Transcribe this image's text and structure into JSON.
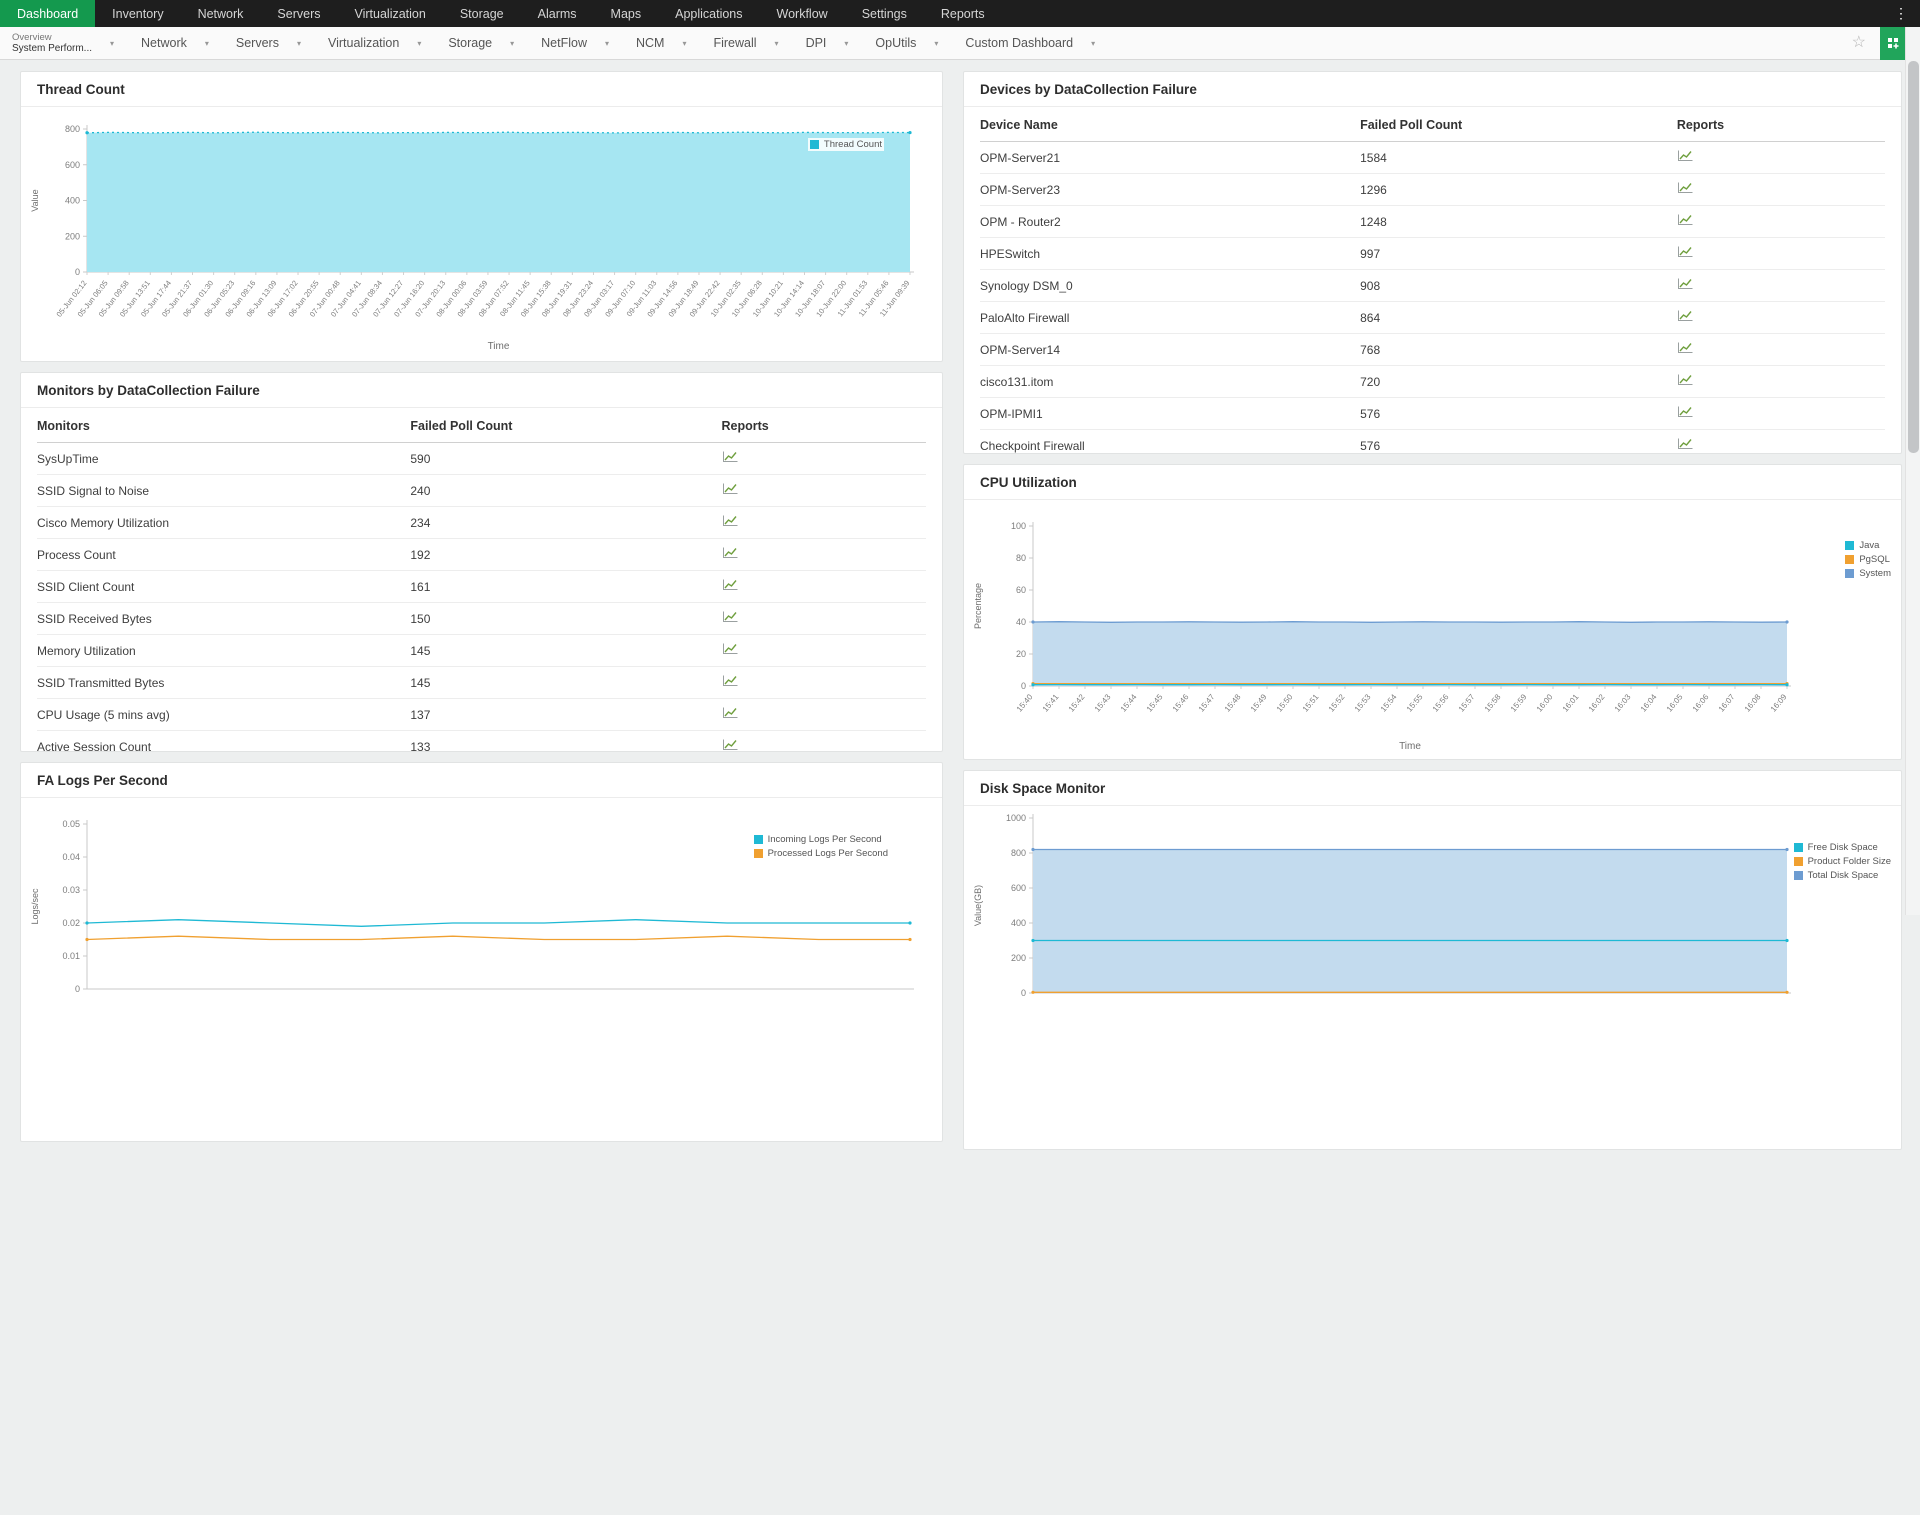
{
  "colors": {
    "nav_bg": "#1e1e1e",
    "nav_active_green": "#14994e",
    "accent_green_button": "#21a55b",
    "cyan": "#1fb9d4",
    "cyan_fill": "#a6e6f2",
    "orange": "#f0a030",
    "steel_blue": "#6d9cd1",
    "steel_blue_fill": "#c3dbee"
  },
  "icons": {
    "overflow": "kebab-menu-icon",
    "tab_dropdown": "chevron-down-icon",
    "favorite": "star-icon",
    "add_widget": "add-widget-icon",
    "report": "report-chart-icon"
  },
  "top_nav": {
    "items": [
      {
        "label": "Dashboard",
        "active": true
      },
      {
        "label": "Inventory",
        "active": false
      },
      {
        "label": "Network",
        "active": false
      },
      {
        "label": "Servers",
        "active": false
      },
      {
        "label": "Virtualization",
        "active": false
      },
      {
        "label": "Storage",
        "active": false
      },
      {
        "label": "Alarms",
        "active": false
      },
      {
        "label": "Maps",
        "active": false
      },
      {
        "label": "Applications",
        "active": false
      },
      {
        "label": "Workflow",
        "active": false
      },
      {
        "label": "Settings",
        "active": false
      },
      {
        "label": "Reports",
        "active": false
      }
    ]
  },
  "tab_bar": {
    "primary_tab": {
      "label": "Overview",
      "sublabel": "System Perform..."
    },
    "tabs": [
      "Network",
      "Servers",
      "Virtualization",
      "Storage",
      "NetFlow",
      "NCM",
      "Firewall",
      "DPI",
      "OpUtils",
      "Custom Dashboard"
    ]
  },
  "panels": {
    "thread": {
      "title": "Thread Count"
    },
    "monitors": {
      "title": "Monitors by DataCollection Failure",
      "columns": [
        "Monitors",
        "Failed Poll Count",
        "Reports"
      ],
      "rows": [
        [
          "SysUpTime",
          "590"
        ],
        [
          "SSID Signal to Noise",
          "240"
        ],
        [
          "Cisco Memory Utilization",
          "234"
        ],
        [
          "Process Count",
          "192"
        ],
        [
          "SSID Client Count",
          "161"
        ],
        [
          "SSID Received Bytes",
          "150"
        ],
        [
          "Memory Utilization",
          "145"
        ],
        [
          "SSID Transmitted Bytes",
          "145"
        ],
        [
          "CPU Usage (5 mins avg)",
          "137"
        ],
        [
          "Active Session Count",
          "133"
        ]
      ]
    },
    "fa_logs": {
      "title": "FA Logs Per Second"
    },
    "devices": {
      "title": "Devices by DataCollection Failure",
      "columns": [
        "Device Name",
        "Failed Poll Count",
        "Reports"
      ],
      "rows": [
        [
          "OPM-Server21",
          "1584"
        ],
        [
          "OPM-Server23",
          "1296"
        ],
        [
          "OPM - Router2",
          "1248"
        ],
        [
          "HPESwitch",
          "997"
        ],
        [
          "Synology DSM_0",
          "908"
        ],
        [
          "PaloAlto Firewall",
          "864"
        ],
        [
          "OPM-Server14",
          "768"
        ],
        [
          "cisco131.itom",
          "720"
        ],
        [
          "OPM-IPMI1",
          "576"
        ],
        [
          "Checkpoint Firewall",
          "576"
        ]
      ]
    },
    "cpu": {
      "title": "CPU Utilization"
    },
    "disk": {
      "title": "Disk Space Monitor"
    }
  },
  "chart_data": [
    {
      "id": "thread",
      "type": "area",
      "title": "Thread Count",
      "xlabel": "Time",
      "ylabel": "Value",
      "ylim": [
        0,
        800
      ],
      "yticks": [
        0,
        200,
        400,
        600,
        800
      ],
      "x": [
        "05-Jun 02:12",
        "05-Jun 06:05",
        "05-Jun 09:58",
        "05-Jun 13:51",
        "05-Jun 17:44",
        "05-Jun 21:37",
        "06-Jun 01:30",
        "06-Jun 05:23",
        "06-Jun 09:16",
        "06-Jun 13:09",
        "06-Jun 17:02",
        "06-Jun 20:55",
        "07-Jun 00:48",
        "07-Jun 04:41",
        "07-Jun 08:34",
        "07-Jun 12:27",
        "07-Jun 16:20",
        "07-Jun 20:13",
        "08-Jun 00:06",
        "08-Jun 03:59",
        "08-Jun 07:52",
        "08-Jun 11:45",
        "08-Jun 15:38",
        "08-Jun 19:31",
        "08-Jun 23:24",
        "09-Jun 03:17",
        "09-Jun 07:10",
        "09-Jun 11:03",
        "09-Jun 14:56",
        "09-Jun 18:49",
        "09-Jun 22:42",
        "10-Jun 02:35",
        "10-Jun 06:28",
        "10-Jun 10:21",
        "10-Jun 14:14",
        "10-Jun 18:07",
        "10-Jun 22:00",
        "11-Jun 01:53",
        "11-Jun 05:46",
        "11-Jun 09:39"
      ],
      "series": [
        {
          "name": "Thread Count",
          "color": "#1fb9d4",
          "fill": "#a6e6f2",
          "dashed": true,
          "values": [
            779,
            781,
            780,
            778,
            780,
            781,
            779,
            780,
            782,
            780,
            779,
            780,
            781,
            780,
            778,
            780,
            779,
            781,
            780,
            780,
            782,
            779,
            780,
            781,
            780,
            778,
            780,
            780,
            781,
            779,
            780,
            782,
            780,
            779,
            781,
            780,
            780,
            779,
            781,
            780
          ]
        }
      ],
      "legend_position": "top-right"
    },
    {
      "id": "cpu",
      "type": "area",
      "title": "CPU Utilization",
      "xlabel": "Time",
      "ylabel": "Percentage",
      "ylim": [
        0,
        100
      ],
      "yticks": [
        0,
        20,
        40,
        60,
        80,
        100
      ],
      "x": [
        "15:40",
        "15:41",
        "15:42",
        "15:43",
        "15:44",
        "15:45",
        "15:46",
        "15:47",
        "15:48",
        "15:49",
        "15:50",
        "15:51",
        "15:52",
        "15:53",
        "15:54",
        "15:55",
        "15:56",
        "15:57",
        "15:58",
        "15:59",
        "16:00",
        "16:01",
        "16:02",
        "16:03",
        "16:04",
        "16:05",
        "16:06",
        "16:07",
        "16:08",
        "16:09"
      ],
      "series": [
        {
          "name": "Java",
          "color": "#1fb9d4",
          "values": [
            0.8,
            0.9,
            0.8,
            0.8,
            0.9,
            0.8,
            0.8,
            0.9,
            0.8,
            0.8,
            0.9,
            0.8,
            0.8,
            0.9,
            0.8,
            0.8,
            0.9,
            0.8,
            0.8,
            0.9,
            0.8,
            0.8,
            0.9,
            0.8,
            0.8,
            0.9,
            0.8,
            0.8,
            0.9,
            0.8
          ]
        },
        {
          "name": "PgSQL",
          "color": "#f0a030",
          "values": [
            1.5,
            1.5,
            1.5,
            1.5,
            1.5,
            1.5,
            1.5,
            1.5,
            1.5,
            1.5,
            1.5,
            1.5,
            1.5,
            1.5,
            1.5,
            1.5,
            1.5,
            1.5,
            1.5,
            1.5,
            1.5,
            1.5,
            1.5,
            1.5,
            1.5,
            1.5,
            1.5,
            1.5,
            1.5,
            1.5
          ]
        },
        {
          "name": "System",
          "color": "#6d9cd1",
          "fill": "#c3dbee",
          "values": [
            40,
            40.2,
            40,
            39.8,
            40,
            40,
            40.1,
            40,
            39.9,
            40,
            40.2,
            40,
            40,
            39.8,
            40,
            40.1,
            40,
            40,
            39.9,
            40,
            40,
            40.2,
            40,
            39.8,
            40,
            40,
            40.1,
            40,
            39.9,
            40
          ]
        }
      ],
      "legend_position": "top-right"
    },
    {
      "id": "fa_logs",
      "type": "area",
      "title": "FA Logs Per Second",
      "xlabel": "",
      "ylabel": "Logs/sec",
      "ylim": [
        0,
        0.05
      ],
      "yticks": [
        0,
        0.01,
        0.02,
        0.03,
        0.04,
        0.05
      ],
      "x": [],
      "series": [
        {
          "name": "Incoming Logs Per Second",
          "color": "#1fb9d4",
          "values": [
            0.02,
            0.021,
            0.02,
            0.019,
            0.02,
            0.02,
            0.021,
            0.02,
            0.02,
            0.02
          ]
        },
        {
          "name": "Processed Logs Per Second",
          "color": "#f0a030",
          "values": [
            0.015,
            0.016,
            0.015,
            0.015,
            0.016,
            0.015,
            0.015,
            0.016,
            0.015,
            0.015
          ]
        }
      ],
      "legend_position": "top-right"
    },
    {
      "id": "disk",
      "type": "area",
      "title": "Disk Space Monitor",
      "xlabel": "",
      "ylabel": "Value(GB)",
      "ylim": [
        0,
        1000
      ],
      "yticks": [
        0,
        200,
        400,
        600,
        800,
        1000
      ],
      "x": [],
      "series": [
        {
          "name": "Free Disk Space",
          "color": "#1fb9d4",
          "values": [
            300,
            300,
            300,
            300,
            300,
            300,
            300,
            300,
            300,
            300
          ]
        },
        {
          "name": "Product Folder Size",
          "color": "#f0a030",
          "values": [
            4,
            4,
            4,
            4,
            4,
            4,
            4,
            4,
            4,
            4
          ]
        },
        {
          "name": "Total Disk Space",
          "color": "#6d9cd1",
          "fill": "#c3dbee",
          "values": [
            820,
            820,
            820,
            820,
            820,
            820,
            820,
            820,
            820,
            820
          ]
        }
      ],
      "legend_position": "top-right"
    }
  ]
}
